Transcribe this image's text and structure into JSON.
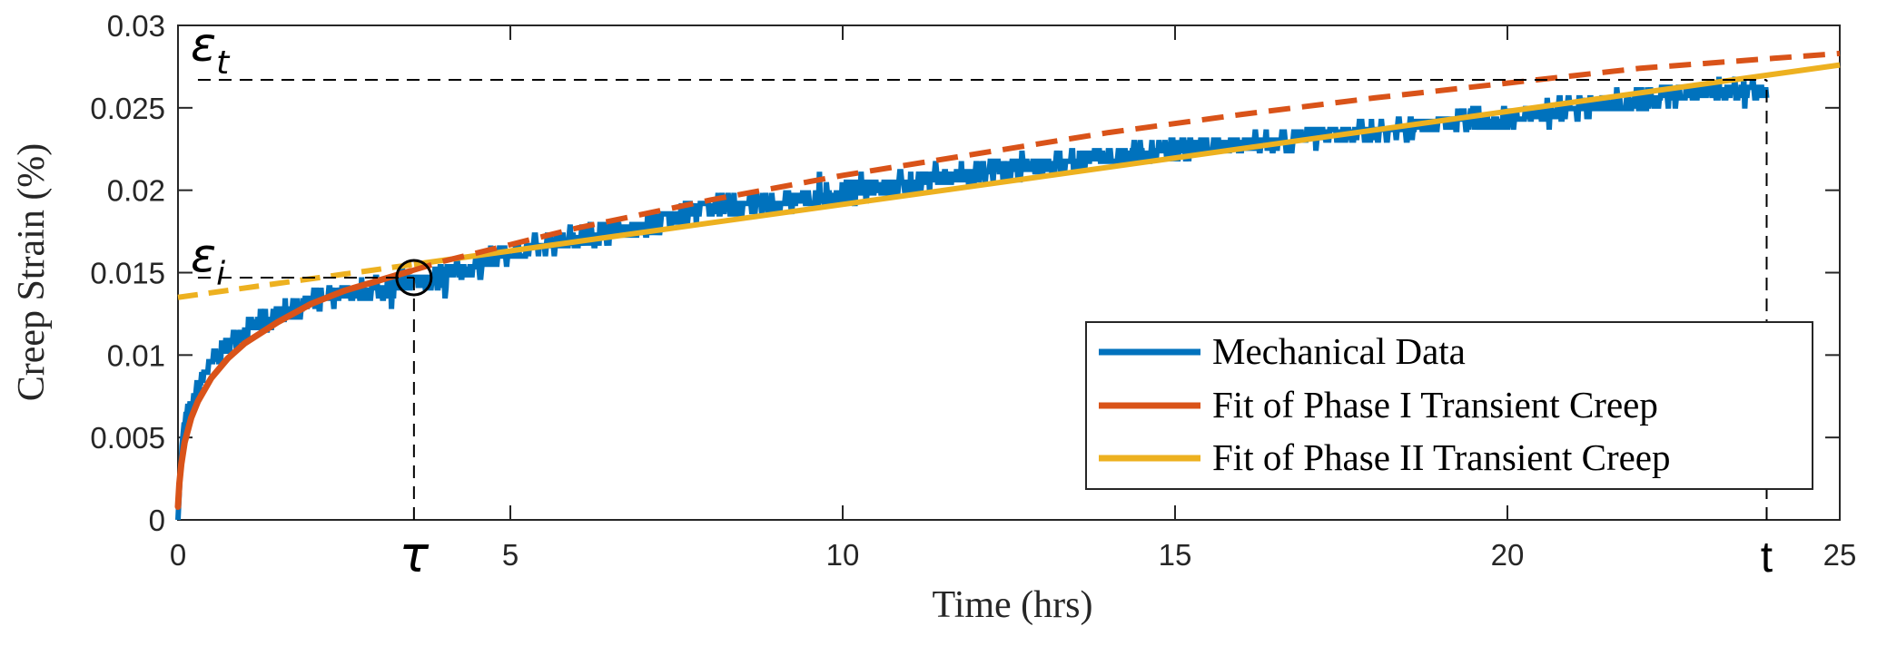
{
  "chart_data": {
    "type": "line",
    "title": "",
    "xlabel": "Time (hrs)",
    "ylabel": "Creep Strain (%)",
    "xlim": [
      0,
      25
    ],
    "ylim": [
      0,
      0.03
    ],
    "grid": false,
    "legend_position": "bottom-right",
    "x_ticks": [
      0,
      5,
      10,
      15,
      20,
      25
    ],
    "x_tick_labels": [
      "0",
      "5",
      "10",
      "15",
      "20",
      "25"
    ],
    "y_ticks": [
      0,
      0.005,
      0.01,
      0.015,
      0.02,
      0.025,
      0.03
    ],
    "y_tick_labels": [
      "0",
      "0.005",
      "0.01",
      "0.015",
      "0.02",
      "0.025",
      "0.03"
    ],
    "series": [
      {
        "name": "Mechanical Data",
        "color": "#0072BD",
        "style": "solid",
        "x": [
          0,
          0.05,
          0.1,
          0.2,
          0.3,
          0.5,
          0.7,
          1.0,
          1.3,
          1.7,
          2.0,
          2.5,
          3.0,
          3.5,
          4.0,
          5.0,
          6.0,
          7.0,
          8.0,
          9.0,
          10.0,
          11.0,
          12.0,
          13.0,
          14.0,
          15.0,
          16.0,
          17.0,
          18.0,
          19.0,
          20.0,
          21.0,
          22.0,
          23.0,
          23.9
        ],
        "values": [
          0,
          0.004,
          0.006,
          0.007,
          0.008,
          0.0095,
          0.0105,
          0.0115,
          0.012,
          0.0128,
          0.0133,
          0.0138,
          0.014,
          0.0145,
          0.0148,
          0.0162,
          0.0172,
          0.0178,
          0.019,
          0.0192,
          0.0198,
          0.0205,
          0.021,
          0.0215,
          0.022,
          0.0225,
          0.0228,
          0.0232,
          0.0236,
          0.024,
          0.0245,
          0.025,
          0.0255,
          0.026,
          0.0262
        ],
        "noise_band": 0.0012
      },
      {
        "name": "Fit of Phase I Transient Creep",
        "color": "#D95319",
        "style": "solid-then-dashed",
        "x": [
          0,
          0.02,
          0.05,
          0.1,
          0.2,
          0.3,
          0.5,
          0.75,
          1.0,
          1.5,
          2.0,
          2.5,
          3.0,
          3.5,
          4.0,
          5.0,
          6.0,
          8.0,
          10.0,
          12.0,
          14.0,
          16.0,
          18.0,
          20.0,
          22.0,
          24.0,
          25.0
        ],
        "values": [
          0.0008,
          0.0022,
          0.0034,
          0.0047,
          0.0062,
          0.0072,
          0.0086,
          0.0098,
          0.0107,
          0.012,
          0.0131,
          0.0139,
          0.0145,
          0.0151,
          0.0157,
          0.0167,
          0.0177,
          0.0194,
          0.0209,
          0.0222,
          0.0235,
          0.0246,
          0.0256,
          0.0265,
          0.0274,
          0.028,
          0.0283
        ]
      },
      {
        "name": "Fit of Phase II Transient Creep",
        "color": "#EDB120",
        "style": "dashed-then-solid",
        "x": [
          0,
          25
        ],
        "values": [
          0.0135,
          0.0276
        ]
      }
    ],
    "annotations": [
      {
        "text": "ε",
        "subscript": "t",
        "x": 0.3,
        "y": 0.0283
      },
      {
        "text": "ε",
        "subscript": "i",
        "x": 0.3,
        "y": 0.0155
      },
      {
        "text": "τ",
        "x": 3.55,
        "y_below_axis": true
      },
      {
        "text": "t",
        "x": 23.9,
        "y_below_axis": true
      }
    ],
    "reference_lines": {
      "tau_x": 3.55,
      "t_x": 23.9,
      "eps_i_y": 0.0147,
      "eps_t_y": 0.0267,
      "intersection_marker": {
        "x": 3.55,
        "y": 0.0147
      }
    }
  }
}
